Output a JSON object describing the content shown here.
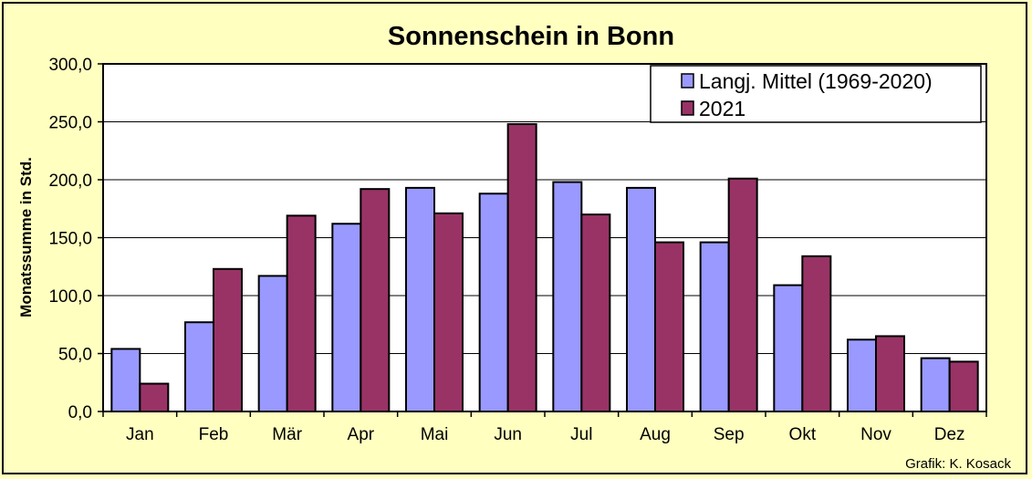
{
  "chart_data": {
    "type": "bar",
    "title": "Sonnenschein in Bonn",
    "xlabel": "",
    "ylabel": "Monatssumme in Std.",
    "ylim": [
      0,
      300
    ],
    "yticks": [
      "0,0",
      "50,0",
      "100,0",
      "150,0",
      "200,0",
      "250,0",
      "300,0"
    ],
    "ytick_values": [
      0,
      50,
      100,
      150,
      200,
      250,
      300
    ],
    "grid": true,
    "legend_position": "top-right",
    "categories": [
      "Jan",
      "Feb",
      "Mär",
      "Apr",
      "Mai",
      "Jun",
      "Jul",
      "Aug",
      "Sep",
      "Okt",
      "Nov",
      "Dez"
    ],
    "series": [
      {
        "name": "Langj. Mittel (1969-2020)",
        "color": "#9999ff",
        "values": [
          54,
          77,
          117,
          162,
          193,
          188,
          198,
          193,
          146,
          109,
          62,
          46
        ]
      },
      {
        "name": "2021",
        "color": "#993366",
        "values": [
          24,
          123,
          169,
          192,
          171,
          248,
          170,
          146,
          201,
          134,
          65,
          43
        ]
      }
    ],
    "credit": "Grafik:  K. Kosack"
  },
  "colors": {
    "background": "#ffffc0",
    "plot_background": "#ffffff",
    "grid": "#000000"
  }
}
